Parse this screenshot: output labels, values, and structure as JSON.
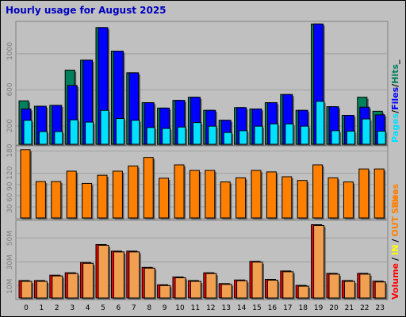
{
  "title": "Hourly usage for August 2025",
  "colors": {
    "hits": "#00805c",
    "files": "#0000ff",
    "pages": "#00e0ff",
    "sites": "#ff8000",
    "volume": "#ff0000",
    "in": "#f0a050",
    "out": "#ff6a00",
    "slash": "#000000"
  },
  "chart_data": [
    {
      "type": "bar",
      "title": "Hourly usage for August 2025",
      "categories": [
        "0",
        "1",
        "2",
        "3",
        "4",
        "5",
        "6",
        "7",
        "8",
        "9",
        "10",
        "11",
        "12",
        "13",
        "14",
        "15",
        "16",
        "17",
        "18",
        "19",
        "20",
        "21",
        "22",
        "23"
      ],
      "legend": [
        "Pages",
        "/",
        "Files",
        "/",
        "Hits",
        "_"
      ],
      "ylim": [
        0,
        1350
      ],
      "yticks": [
        "200",
        "600",
        "1000"
      ],
      "series": [
        {
          "name": "Hits",
          "values": [
            480,
            420,
            430,
            820,
            930,
            1290,
            1030,
            790,
            460,
            400,
            485,
            520,
            375,
            265,
            405,
            390,
            460,
            550,
            375,
            1330,
            415,
            320,
            520,
            365
          ]
        },
        {
          "name": "Files",
          "values": [
            390,
            420,
            430,
            650,
            930,
            1290,
            1030,
            790,
            460,
            400,
            485,
            520,
            375,
            265,
            405,
            390,
            460,
            550,
            375,
            1330,
            415,
            320,
            410,
            325
          ]
        },
        {
          "name": "Pages",
          "values": [
            265,
            140,
            140,
            270,
            245,
            375,
            285,
            265,
            185,
            175,
            190,
            240,
            200,
            130,
            150,
            200,
            225,
            225,
            200,
            475,
            150,
            145,
            280,
            145
          ]
        }
      ]
    },
    {
      "type": "bar",
      "categories": [
        "0",
        "1",
        "2",
        "3",
        "4",
        "5",
        "6",
        "7",
        "8",
        "9",
        "10",
        "11",
        "12",
        "13",
        "14",
        "15",
        "16",
        "17",
        "18",
        "19",
        "20",
        "21",
        "22",
        "23"
      ],
      "legend": [
        "Sites"
      ],
      "ylim": [
        0,
        190
      ],
      "yticks": [
        "30",
        "60",
        "90",
        "120",
        "180"
      ],
      "series": [
        {
          "name": "Sites",
          "values": [
            184,
            98,
            98,
            126,
            93,
            115,
            126,
            140,
            163,
            107,
            143,
            128,
            128,
            97,
            108,
            128,
            124,
            111,
            101,
            143,
            108,
            97,
            132,
            132
          ]
        }
      ]
    },
    {
      "type": "bar",
      "categories": [
        "0",
        "1",
        "2",
        "3",
        "4",
        "5",
        "6",
        "7",
        "8",
        "9",
        "10",
        "11",
        "12",
        "13",
        "14",
        "15",
        "16",
        "17",
        "18",
        "19",
        "20",
        "21",
        "22",
        "23"
      ],
      "legend": [
        "Volume",
        "/",
        "IN",
        "/",
        "OUT",
        "Sites"
      ],
      "ylim": [
        0,
        62
      ],
      "yticks": [
        "10M",
        "30M",
        "50M"
      ],
      "series": [
        {
          "name": "Volume",
          "values": [
            14.5,
            14.5,
            19.0,
            21.0,
            29.5,
            44.5,
            39.0,
            39.0,
            25.5,
            11.0,
            17.5,
            14.5,
            21.0,
            12.0,
            15.0,
            30.5,
            15.5,
            22.5,
            10.5,
            61.0,
            20.5,
            14.5,
            20.5,
            14.0
          ]
        }
      ]
    }
  ],
  "hours": [
    "0",
    "1",
    "2",
    "3",
    "4",
    "5",
    "6",
    "7",
    "8",
    "9",
    "10",
    "11",
    "12",
    "13",
    "14",
    "15",
    "16",
    "17",
    "18",
    "19",
    "20",
    "21",
    "22",
    "23"
  ]
}
